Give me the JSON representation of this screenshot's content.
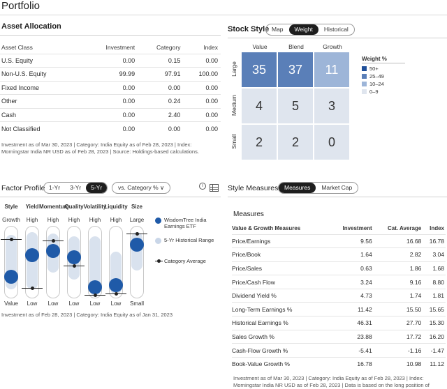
{
  "page_title": "Portfolio",
  "asset_allocation": {
    "title": "Asset Allocation",
    "columns": [
      "Asset Class",
      "Investment",
      "Category",
      "Index"
    ],
    "rows": [
      [
        "U.S. Equity",
        "0.00",
        "0.15",
        "0.00"
      ],
      [
        "Non-U.S. Equity",
        "99.99",
        "97.91",
        "100.00"
      ],
      [
        "Fixed Income",
        "0.00",
        "0.00",
        "0.00"
      ],
      [
        "Other",
        "0.00",
        "0.24",
        "0.00"
      ],
      [
        "Cash",
        "0.00",
        "2.40",
        "0.00"
      ],
      [
        "Not Classified",
        "0.00",
        "0.00",
        "0.00"
      ]
    ],
    "footnote": "Investment as of Mar 30, 2023 | Category: India Equity as of Feb 28, 2023 | Index: Morningstar India NR USD as of Feb 28, 2023 | Source: Holdings-based calculations."
  },
  "stock_style": {
    "title": "Stock Style",
    "tabs": [
      "Map",
      "Weight",
      "Historical"
    ],
    "active_tab": "Weight",
    "col_labels": [
      "Value",
      "Blend",
      "Growth"
    ],
    "row_labels": [
      "Large",
      "Medium",
      "Small"
    ],
    "cells": [
      [
        "35",
        "37",
        "11"
      ],
      [
        "4",
        "5",
        "3"
      ],
      [
        "2",
        "2",
        "0"
      ]
    ],
    "cell_colors": [
      [
        "#5a7fb8",
        "#5a7fb8",
        "#9db5d8"
      ],
      [
        "#dfe5ee",
        "#dfe5ee",
        "#dfe5ee"
      ],
      [
        "#dfe5ee",
        "#dfe5ee",
        "#dfe5ee"
      ]
    ],
    "legend_title": "Weight %",
    "legend": [
      {
        "label": "50+",
        "color": "#1f4f99"
      },
      {
        "label": "25–49",
        "color": "#5a7fb8"
      },
      {
        "label": "10–24",
        "color": "#9db5d8"
      },
      {
        "label": "0–9",
        "color": "#dfe5ee"
      }
    ]
  },
  "factor_profile": {
    "title": "Factor Profile",
    "periods": [
      "1-Yr",
      "3-Yr",
      "5-Yr"
    ],
    "active_period": "5-Yr",
    "compare_label": "vs. Category %",
    "factors": [
      {
        "name": "Style",
        "top": "Growth",
        "bottom": "Value",
        "fund": 0.25,
        "range": [
          0.12,
          0.88
        ],
        "category": 0.82
      },
      {
        "name": "Yield",
        "top": "High",
        "bottom": "Low",
        "fund": 0.62,
        "range": [
          0.12,
          0.92
        ],
        "category": 0.14
      },
      {
        "name": "Momentum",
        "top": "High",
        "bottom": "Low",
        "fund": 0.7,
        "range": [
          0.35,
          0.9
        ],
        "category": 0.8
      },
      {
        "name": "Quality",
        "top": "High",
        "bottom": "Low",
        "fund": 0.58,
        "range": [
          0.25,
          0.86
        ],
        "category": 0.45
      },
      {
        "name": "Volatility",
        "top": "High",
        "bottom": "Low",
        "fund": 0.06,
        "range": [
          0.03,
          0.86
        ],
        "category": 0.04
      },
      {
        "name": "Liquidity",
        "top": "High",
        "bottom": "Low",
        "fund": 0.1,
        "range": [
          0.05,
          0.65
        ],
        "category": 0.06
      },
      {
        "name": "Size",
        "top": "Large",
        "bottom": "Small",
        "fund": 0.8,
        "range": [
          0.38,
          0.92
        ],
        "category": 0.9
      }
    ],
    "legend": {
      "fund": "WisdomTree India Earnings ETF",
      "range": "5-Yr Historical Range",
      "category": "Category Average"
    },
    "colors": {
      "fund": "#1f5aa8",
      "range": "#d9e2ee"
    },
    "footnote": "Investment as of Feb 28, 2023 | Category: India Equity as of Jan 31, 2023"
  },
  "style_measures": {
    "title": "Style Measures",
    "tabs": [
      "Measures",
      "Market Cap"
    ],
    "active_tab": "Measures",
    "subtitle": "Measures",
    "columns": [
      "Value & Growth Measures",
      "Investment",
      "Cat. Average",
      "Index"
    ],
    "rows": [
      [
        "Price/Earnings",
        "9.56",
        "16.68",
        "16.78"
      ],
      [
        "Price/Book",
        "1.64",
        "2.82",
        "3.04"
      ],
      [
        "Price/Sales",
        "0.63",
        "1.86",
        "1.68"
      ],
      [
        "Price/Cash Flow",
        "3.24",
        "9.16",
        "8.80"
      ],
      [
        "Dividend Yield %",
        "4.73",
        "1.74",
        "1.81"
      ],
      [
        "Long-Term Earnings %",
        "11.42",
        "15.50",
        "15.65"
      ],
      [
        "Historical Earnings %",
        "46.31",
        "27.70",
        "15.30"
      ],
      [
        "Sales Growth %",
        "23.88",
        "17.72",
        "16.20"
      ],
      [
        "Cash-Flow Growth %",
        "-5.41",
        "-1.16",
        "-1.47"
      ],
      [
        "Book-Value Growth %",
        "16.78",
        "10.98",
        "11.12"
      ]
    ],
    "footnote": "Investment as of Mar 30, 2023 | Category: India Equity as of Feb 28, 2023 | Index: Morningstar India NR USD as of Feb 28, 2023 | Data is based on the long position of"
  }
}
